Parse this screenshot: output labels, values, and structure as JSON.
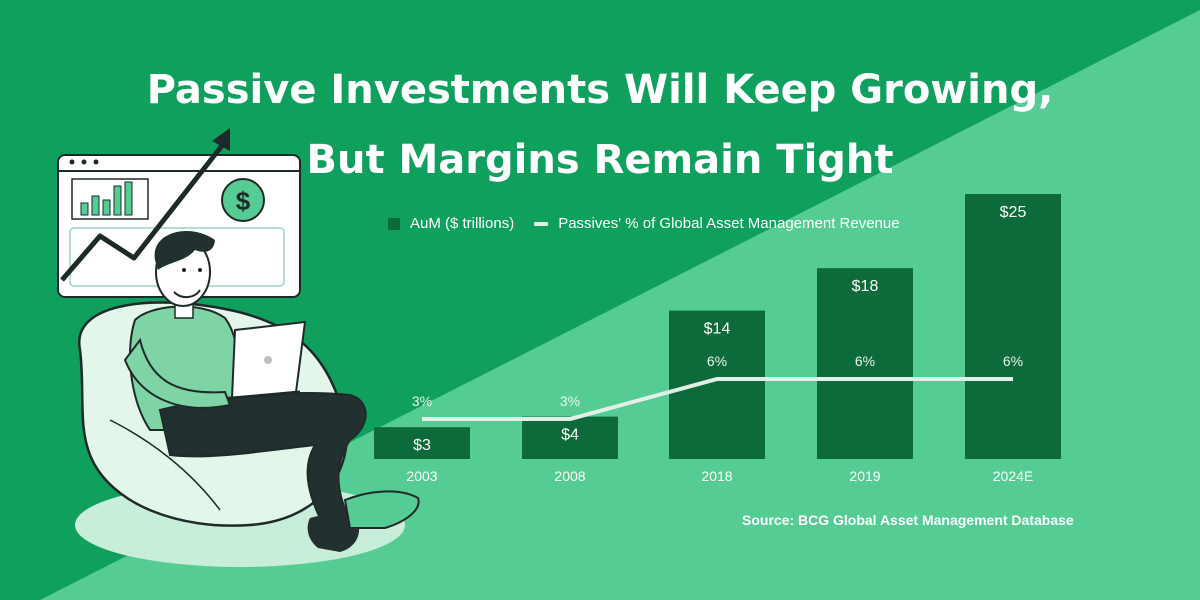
{
  "title": {
    "line1": "Passive Investments Will Keep Growing,",
    "line2": "But Margins Remain Tight"
  },
  "source": "Source: BCG Global Asset Management Database",
  "colors": {
    "background_dark": "#10a05e",
    "background_light": "#55cc93",
    "bar": "#0d6a3a",
    "line": "#e2efe7"
  },
  "illustration": {
    "icon": "person-with-laptop-and-growth-chart-icon",
    "dollar_symbol": "$"
  },
  "chart_data": {
    "type": "bar",
    "title": "",
    "xlabel": "",
    "ylabel": "",
    "categories": [
      "2003",
      "2008",
      "2018",
      "2019",
      "2024E"
    ],
    "ylim": [
      0,
      26
    ],
    "grid": false,
    "legend": "top-left",
    "series": [
      {
        "name": "AuM ($ trillions)",
        "type": "bar",
        "values": [
          3,
          4,
          14,
          18,
          25
        ],
        "labels": [
          "$3",
          "$4",
          "$14",
          "$18",
          "$25"
        ]
      },
      {
        "name": "Passives' % of Global Asset Management Revenue",
        "type": "line",
        "values": [
          3,
          3,
          6,
          6,
          6
        ],
        "labels": [
          "3%",
          "3%",
          "6%",
          "6%",
          "6%"
        ]
      }
    ]
  }
}
